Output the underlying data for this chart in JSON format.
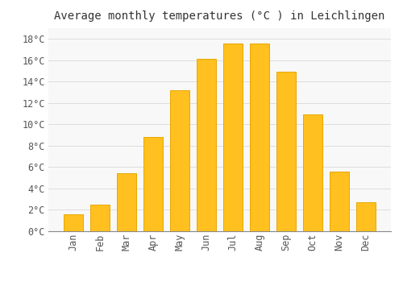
{
  "title": "Average monthly temperatures (°C ) in Leichlingen",
  "months": [
    "Jan",
    "Feb",
    "Mar",
    "Apr",
    "May",
    "Jun",
    "Jul",
    "Aug",
    "Sep",
    "Oct",
    "Nov",
    "Dec"
  ],
  "temperatures": [
    1.6,
    2.5,
    5.4,
    8.8,
    13.2,
    16.1,
    17.6,
    17.6,
    14.9,
    10.9,
    5.6,
    2.7
  ],
  "bar_color": "#FFC020",
  "bar_edge_color": "#E8A800",
  "background_color": "#FFFFFF",
  "plot_bg_color": "#F8F8F8",
  "grid_color": "#DDDDDD",
  "ylim": [
    0,
    19
  ],
  "yticks": [
    0,
    2,
    4,
    6,
    8,
    10,
    12,
    14,
    16,
    18
  ],
  "ytick_labels": [
    "0°C",
    "2°C",
    "4°C",
    "6°C",
    "8°C",
    "10°C",
    "12°C",
    "14°C",
    "16°C",
    "18°C"
  ],
  "title_fontsize": 10,
  "tick_fontsize": 8.5,
  "bar_width": 0.72
}
